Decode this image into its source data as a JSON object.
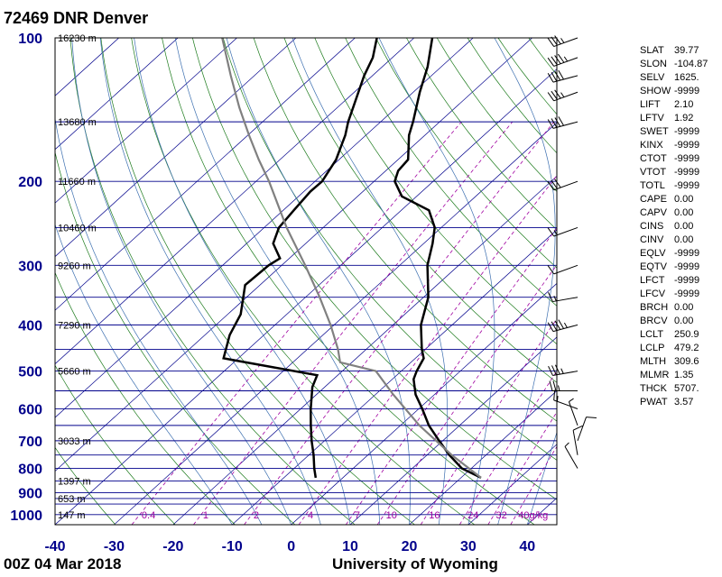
{
  "header": {
    "title": "72469 DNR Denver"
  },
  "footer": {
    "time": "00Z 04 Mar 2018",
    "source": "University of Wyoming"
  },
  "colors": {
    "frame": "#000000",
    "isobar": "#00008b",
    "isotherm": "#00008b",
    "dry_adiabat": "#1b7a1b",
    "moist_adiabat": "#3c6fb0",
    "mixing_ratio": "#a000a0",
    "axis_label": "#00008b",
    "sounding": "#000000",
    "parcel": "#808080",
    "mixing_label": "#a000a0"
  },
  "indices": [
    {
      "key": "SLAT",
      "value": "39.77"
    },
    {
      "key": "SLON",
      "value": "-104.87"
    },
    {
      "key": "SELV",
      "value": "1625."
    },
    {
      "key": "SHOW",
      "value": "-9999"
    },
    {
      "key": "LIFT",
      "value": "2.10"
    },
    {
      "key": "LFTV",
      "value": "1.92"
    },
    {
      "key": "SWET",
      "value": "-9999"
    },
    {
      "key": "KINX",
      "value": "-9999"
    },
    {
      "key": "CTOT",
      "value": "-9999"
    },
    {
      "key": "VTOT",
      "value": "-9999"
    },
    {
      "key": "TOTL",
      "value": "-9999"
    },
    {
      "key": "CAPE",
      "value": "0.00"
    },
    {
      "key": "CAPV",
      "value": "0.00"
    },
    {
      "key": "CINS",
      "value": "0.00"
    },
    {
      "key": "CINV",
      "value": "0.00"
    },
    {
      "key": "EQLV",
      "value": "-9999"
    },
    {
      "key": "EQTV",
      "value": "-9999"
    },
    {
      "key": "LFCT",
      "value": "-9999"
    },
    {
      "key": "LFCV",
      "value": "-9999"
    },
    {
      "key": "BRCH",
      "value": "0.00"
    },
    {
      "key": "BRCV",
      "value": "0.00"
    },
    {
      "key": "LCLT",
      "value": "250.9"
    },
    {
      "key": "LCLP",
      "value": "479.2"
    },
    {
      "key": "MLTH",
      "value": "309.6"
    },
    {
      "key": "MLMR",
      "value": "1.35"
    },
    {
      "key": "THCK",
      "value": "5707."
    },
    {
      "key": "PWAT",
      "value": "3.57"
    }
  ],
  "chart_data": {
    "type": "line",
    "pressure_axis": {
      "scale": "log",
      "range_hPa": [
        100,
        1050
      ],
      "tick_labels": [
        {
          "p": 100,
          "label": "100"
        },
        {
          "p": 200,
          "label": "200"
        },
        {
          "p": 300,
          "label": "300"
        },
        {
          "p": 400,
          "label": "400"
        },
        {
          "p": 500,
          "label": "500"
        },
        {
          "p": 600,
          "label": "600"
        },
        {
          "p": 700,
          "label": "700"
        },
        {
          "p": 800,
          "label": "800"
        },
        {
          "p": 900,
          "label": "900"
        },
        {
          "p": 1000,
          "label": "1000"
        }
      ],
      "height_labels": [
        {
          "p": 100,
          "label": "16230 m"
        },
        {
          "p": 150,
          "label": "13680 m"
        },
        {
          "p": 200,
          "label": "11660 m"
        },
        {
          "p": 250,
          "label": "10460 m"
        },
        {
          "p": 300,
          "label": "9260 m"
        },
        {
          "p": 400,
          "label": "7290 m"
        },
        {
          "p": 500,
          "label": "5660 m"
        },
        {
          "p": 700,
          "label": "3033 m"
        },
        {
          "p": 850,
          "label": "1397 m"
        },
        {
          "p": 925,
          "label": "653 m"
        },
        {
          "p": 1000,
          "label": "147 m"
        }
      ]
    },
    "temperature_axis": {
      "range_C_at_1050hPa": [
        -40,
        45
      ],
      "ticks": [
        -40,
        -30,
        -20,
        -10,
        0,
        10,
        20,
        30,
        40
      ],
      "tick_labels": [
        "-40",
        "-30",
        "-20",
        "-10",
        "0",
        "10",
        "20",
        "30",
        "40"
      ]
    },
    "isobars_hPa": [
      100,
      150,
      200,
      250,
      300,
      350,
      400,
      450,
      500,
      550,
      600,
      650,
      700,
      750,
      800,
      850,
      900,
      925,
      950,
      1000
    ],
    "mixing_ratio_labels": [
      {
        "w": 0.4,
        "label": "0.4"
      },
      {
        "w": 1,
        "label": "1"
      },
      {
        "w": 2,
        "label": "2"
      },
      {
        "w": 4,
        "label": "4"
      },
      {
        "w": 7,
        "label": "7"
      },
      {
        "w": 10,
        "label": "10"
      },
      {
        "w": 16,
        "label": "16"
      },
      {
        "w": 24,
        "label": "24"
      },
      {
        "w": 32,
        "label": "32"
      },
      {
        "w": 40,
        "label": "40g/kg"
      }
    ],
    "series": [
      {
        "role": "temperature",
        "values": [
          [
            837,
            23.4
          ],
          [
            800,
            18.4
          ],
          [
            750,
            13.8
          ],
          [
            700,
            9.4
          ],
          [
            650,
            4.8
          ],
          [
            600,
            0.6
          ],
          [
            560,
            -3.2
          ],
          [
            520,
            -6.4
          ],
          [
            500,
            -7.4
          ],
          [
            470,
            -8.6
          ],
          [
            450,
            -10.6
          ],
          [
            400,
            -15.3
          ],
          [
            350,
            -19.2
          ],
          [
            300,
            -25.3
          ],
          [
            270,
            -28.5
          ],
          [
            250,
            -31.1
          ],
          [
            230,
            -35.3
          ],
          [
            215,
            -42.5
          ],
          [
            200,
            -46.5
          ],
          [
            190,
            -47.9
          ],
          [
            180,
            -48.3
          ],
          [
            160,
            -52.7
          ],
          [
            150,
            -54.5
          ],
          [
            130,
            -58.9
          ],
          [
            115,
            -62.3
          ],
          [
            100,
            -66.9
          ]
        ]
      },
      {
        "role": "dewpoint",
        "values": [
          [
            837,
            -4.6
          ],
          [
            800,
            -6.6
          ],
          [
            750,
            -9.2
          ],
          [
            700,
            -12.2
          ],
          [
            650,
            -15.2
          ],
          [
            600,
            -18.3
          ],
          [
            540,
            -22.1
          ],
          [
            510,
            -23.5
          ],
          [
            470,
            -42.5
          ],
          [
            420,
            -45.8
          ],
          [
            380,
            -47.8
          ],
          [
            330,
            -52.5
          ],
          [
            300,
            -52.2
          ],
          [
            290,
            -51.6
          ],
          [
            270,
            -55.5
          ],
          [
            250,
            -57.5
          ],
          [
            230,
            -58.2
          ],
          [
            210,
            -58.9
          ],
          [
            200,
            -58.8
          ],
          [
            180,
            -60.5
          ],
          [
            160,
            -63.5
          ],
          [
            150,
            -65.5
          ],
          [
            120,
            -71.4
          ],
          [
            110,
            -73.3
          ],
          [
            100,
            -76.3
          ]
        ]
      },
      {
        "role": "parcel",
        "values": [
          [
            837,
            23.4
          ],
          [
            750,
            14.2
          ],
          [
            650,
            3.2
          ],
          [
            560,
            -7.0
          ],
          [
            500,
            -14.3
          ],
          [
            479.2,
            -22.0
          ],
          [
            450,
            -24.8
          ],
          [
            400,
            -30.6
          ],
          [
            350,
            -37.6
          ],
          [
            300,
            -46.0
          ],
          [
            250,
            -56.2
          ],
          [
            200,
            -67.8
          ],
          [
            180,
            -73.6
          ],
          [
            160,
            -79.8
          ],
          [
            140,
            -86.6
          ],
          [
            120,
            -94.0
          ],
          [
            100,
            -102.5
          ]
        ]
      }
    ]
  },
  "wind_barbs": [
    {
      "p": 100,
      "direction_deg": 250,
      "speed_kt": 35
    },
    {
      "p": 110,
      "direction_deg": 250,
      "speed_kt": 45
    },
    {
      "p": 120,
      "direction_deg": 255,
      "speed_kt": 40
    },
    {
      "p": 130,
      "direction_deg": 250,
      "speed_kt": 35
    },
    {
      "p": 150,
      "direction_deg": 255,
      "speed_kt": 40
    },
    {
      "p": 200,
      "direction_deg": 250,
      "speed_kt": 30
    },
    {
      "p": 250,
      "direction_deg": 250,
      "speed_kt": 15
    },
    {
      "p": 300,
      "direction_deg": 250,
      "speed_kt": 10
    },
    {
      "p": 350,
      "direction_deg": 260,
      "speed_kt": 15
    },
    {
      "p": 400,
      "direction_deg": 255,
      "speed_kt": 45
    },
    {
      "p": 500,
      "direction_deg": 260,
      "speed_kt": 35
    },
    {
      "p": 550,
      "direction_deg": 270,
      "speed_kt": 25
    },
    {
      "p": 600,
      "direction_deg": 290,
      "speed_kt": 15
    },
    {
      "p": 650,
      "direction_deg": 340,
      "speed_kt": 5
    },
    {
      "p": 700,
      "direction_deg": 20,
      "speed_kt": 10
    },
    {
      "p": 750,
      "direction_deg": 350,
      "speed_kt": 10
    },
    {
      "p": 800,
      "direction_deg": 330,
      "speed_kt": 5
    }
  ]
}
